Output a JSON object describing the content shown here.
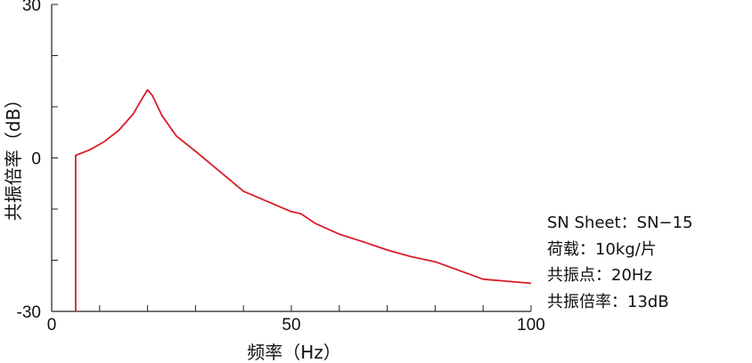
{
  "chart_data": {
    "type": "line",
    "xlabel": "频率（Hz）",
    "ylabel": "共振倍率（dB）",
    "xlim": [
      0,
      100
    ],
    "ylim": [
      -30,
      30
    ],
    "x_ticks": [
      0,
      50,
      100
    ],
    "y_ticks": [
      30,
      0,
      -30
    ],
    "x_minor_step": 10,
    "y_minor_step": 10,
    "grid": false,
    "color": "#d81e28",
    "series": [
      {
        "x": [
          5,
          5,
          5,
          8,
          11,
          14,
          17,
          19,
          20,
          21,
          23,
          26,
          30,
          35,
          40,
          45,
          50,
          52,
          55,
          60,
          65,
          70,
          75,
          80,
          85,
          88,
          90,
          95,
          100
        ],
        "y": [
          -30,
          -30,
          0.5,
          1.6,
          3.2,
          5.4,
          8.6,
          11.8,
          13.3,
          12.2,
          8.3,
          4.3,
          1.3,
          -2.6,
          -6.5,
          -8.5,
          -10.5,
          -10.9,
          -12.8,
          -14.9,
          -16.4,
          -18.0,
          -19.3,
          -20.3,
          -22.0,
          -23.0,
          -23.7,
          -24.1,
          -24.5
        ]
      }
    ]
  },
  "info": {
    "line1": "SN Sheet：SN−15",
    "line2": "荷载：10kg/片",
    "line3": "共振点：20Hz",
    "line4": "共振倍率：13dB"
  }
}
